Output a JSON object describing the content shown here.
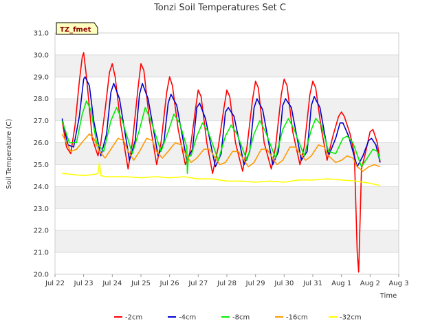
{
  "chart_data": {
    "type": "line",
    "title": "Tonzi Soil Temperatures Set C",
    "xlabel": "Time",
    "ylabel": "Soil Temperature (C)",
    "tag": "TZ_fmet",
    "ylim": [
      20.0,
      31.0
    ],
    "yticks": [
      "20.0",
      "21.0",
      "22.0",
      "23.0",
      "24.0",
      "25.0",
      "26.0",
      "27.0",
      "28.0",
      "29.0",
      "30.0",
      "31.0"
    ],
    "xlim": [
      0,
      12
    ],
    "xticks": [
      "Jul 22",
      "Jul 23",
      "Jul 24",
      "Jul 25",
      "Jul 26",
      "Jul 27",
      "Jul 28",
      "Jul 29",
      "Jul 30",
      "Jul 31",
      "Aug 1",
      "Aug 2",
      "Aug 3"
    ],
    "x_unit": "days since Jul 22",
    "grid": "horizontal",
    "background_bands": true,
    "legend_position": "bottom",
    "series": [
      {
        "name": "-2cm",
        "color": "#ff0000",
        "x": [
          0.25,
          0.4,
          0.55,
          0.7,
          0.85,
          0.95,
          1.0,
          1.1,
          1.3,
          1.5,
          1.6,
          1.75,
          1.9,
          2.0,
          2.1,
          2.3,
          2.55,
          2.7,
          2.9,
          3.0,
          3.1,
          3.3,
          3.55,
          3.7,
          3.9,
          4.0,
          4.1,
          4.3,
          4.55,
          4.7,
          4.9,
          5.0,
          5.1,
          5.3,
          5.5,
          5.7,
          5.9,
          6.0,
          6.1,
          6.3,
          6.55,
          6.7,
          6.9,
          7.0,
          7.1,
          7.3,
          7.55,
          7.7,
          7.9,
          8.0,
          8.1,
          8.3,
          8.55,
          8.7,
          8.9,
          9.0,
          9.1,
          9.3,
          9.5,
          9.7,
          9.9,
          10.0,
          10.1,
          10.3,
          10.45,
          10.55,
          10.6,
          10.7,
          10.85,
          11.0,
          11.1,
          11.25,
          11.35
        ],
        "y": [
          27.0,
          25.8,
          25.5,
          26.8,
          28.8,
          29.9,
          30.1,
          29.0,
          26.2,
          25.4,
          26.0,
          27.5,
          29.2,
          29.6,
          29.0,
          26.8,
          24.8,
          26.0,
          28.5,
          29.6,
          29.3,
          27.0,
          25.0,
          26.0,
          28.3,
          29.0,
          28.6,
          26.6,
          25.0,
          25.5,
          27.5,
          28.4,
          28.1,
          26.0,
          24.6,
          25.8,
          27.6,
          28.4,
          28.1,
          26.0,
          24.7,
          25.8,
          28.0,
          28.8,
          28.5,
          26.0,
          24.8,
          25.8,
          28.2,
          28.9,
          28.6,
          26.5,
          25.0,
          25.8,
          28.2,
          28.8,
          28.5,
          26.6,
          25.2,
          26.3,
          27.2,
          27.4,
          27.2,
          26.4,
          25.5,
          21.0,
          20.1,
          24.8,
          25.6,
          26.5,
          26.6,
          26.0,
          25.1
        ]
      },
      {
        "name": "-4cm",
        "color": "#0000cc",
        "x": [
          0.25,
          0.45,
          0.65,
          0.85,
          1.0,
          1.05,
          1.2,
          1.35,
          1.6,
          1.8,
          1.95,
          2.05,
          2.25,
          2.6,
          2.8,
          2.95,
          3.05,
          3.25,
          3.6,
          3.8,
          3.95,
          4.05,
          4.25,
          4.6,
          4.8,
          4.95,
          5.05,
          5.25,
          5.6,
          5.8,
          5.95,
          6.05,
          6.25,
          6.6,
          6.8,
          6.95,
          7.05,
          7.25,
          7.6,
          7.8,
          7.95,
          8.05,
          8.25,
          8.6,
          8.8,
          8.95,
          9.05,
          9.25,
          9.55,
          9.8,
          9.95,
          10.05,
          10.25,
          10.55,
          10.75,
          10.95,
          11.05,
          11.2,
          11.35
        ],
        "y": [
          27.1,
          25.9,
          25.8,
          27.2,
          28.9,
          29.0,
          28.6,
          27.0,
          25.4,
          26.4,
          28.3,
          28.7,
          28.0,
          25.2,
          26.1,
          28.2,
          28.7,
          28.0,
          25.4,
          26.0,
          27.8,
          28.2,
          27.7,
          25.2,
          25.7,
          27.6,
          27.8,
          27.1,
          24.9,
          25.5,
          27.4,
          27.6,
          27.2,
          25.0,
          25.6,
          27.6,
          28.0,
          27.5,
          25.0,
          25.6,
          27.7,
          28.0,
          27.6,
          25.2,
          25.6,
          27.7,
          28.1,
          27.6,
          25.4,
          26.2,
          26.9,
          26.9,
          26.3,
          24.9,
          25.4,
          26.1,
          26.2,
          25.9,
          25.1
        ]
      },
      {
        "name": "-8cm",
        "color": "#00ee00",
        "x": [
          0.25,
          0.5,
          0.75,
          0.95,
          1.1,
          1.25,
          1.45,
          1.7,
          1.95,
          2.15,
          2.35,
          2.7,
          2.95,
          3.15,
          3.35,
          3.7,
          3.95,
          4.15,
          4.35,
          4.6,
          4.62,
          4.66,
          4.75,
          4.95,
          5.15,
          5.35,
          5.7,
          5.95,
          6.15,
          6.35,
          6.7,
          6.95,
          7.15,
          7.35,
          7.7,
          7.95,
          8.15,
          8.35,
          8.7,
          8.95,
          9.1,
          9.3,
          9.55,
          9.8,
          10.05,
          10.2,
          10.4,
          10.7,
          10.95,
          11.1,
          11.25,
          11.35
        ],
        "y": [
          27.0,
          26.0,
          26.0,
          27.3,
          27.9,
          27.5,
          26.0,
          25.6,
          27.0,
          27.6,
          27.0,
          25.5,
          26.6,
          27.6,
          27.0,
          25.6,
          26.5,
          27.3,
          26.9,
          25.8,
          24.6,
          25.4,
          25.4,
          26.3,
          26.9,
          26.5,
          25.2,
          26.3,
          26.8,
          26.4,
          25.2,
          26.4,
          27.0,
          26.5,
          25.3,
          26.6,
          27.1,
          26.6,
          25.4,
          26.6,
          27.1,
          26.8,
          25.6,
          25.5,
          26.2,
          26.3,
          26.0,
          24.9,
          25.4,
          25.7,
          25.6,
          25.2
        ]
      },
      {
        "name": "-16cm",
        "color": "#ff9900",
        "x": [
          0.25,
          0.55,
          0.75,
          1.0,
          1.2,
          1.35,
          1.55,
          1.75,
          1.95,
          2.2,
          2.4,
          2.55,
          2.75,
          2.95,
          3.2,
          3.4,
          3.55,
          3.75,
          3.95,
          4.2,
          4.4,
          4.55,
          4.75,
          4.95,
          5.2,
          5.4,
          5.55,
          5.75,
          5.95,
          6.2,
          6.4,
          6.55,
          6.75,
          6.95,
          7.2,
          7.4,
          7.55,
          7.75,
          7.95,
          8.2,
          8.4,
          8.55,
          8.75,
          8.95,
          9.2,
          9.4,
          9.55,
          9.8,
          10.0,
          10.2,
          10.4,
          10.55,
          10.75,
          10.95,
          11.15,
          11.35
        ],
        "y": [
          26.4,
          25.6,
          25.7,
          26.1,
          26.4,
          26.2,
          25.6,
          25.3,
          25.7,
          26.2,
          26.1,
          25.6,
          25.2,
          25.6,
          26.2,
          26.1,
          25.6,
          25.3,
          25.6,
          26.0,
          25.9,
          25.5,
          25.1,
          25.3,
          25.7,
          25.7,
          25.4,
          25.0,
          25.1,
          25.6,
          25.6,
          25.3,
          24.9,
          25.1,
          25.7,
          25.7,
          25.4,
          25.0,
          25.2,
          25.8,
          25.8,
          25.5,
          25.2,
          25.4,
          25.9,
          25.8,
          25.4,
          25.1,
          25.2,
          25.4,
          25.3,
          24.9,
          24.7,
          24.9,
          25.0,
          24.9
        ]
      },
      {
        "name": "-32cm",
        "color": "#ffff00",
        "x": [
          0.25,
          0.6,
          1.0,
          1.35,
          1.5,
          1.55,
          1.6,
          1.75,
          2.0,
          2.5,
          3.0,
          3.5,
          4.0,
          4.5,
          5.0,
          5.5,
          6.0,
          6.5,
          7.0,
          7.5,
          8.0,
          8.5,
          9.0,
          9.5,
          10.0,
          10.5,
          11.0,
          11.35
        ],
        "y": [
          24.6,
          24.55,
          24.5,
          24.55,
          24.6,
          25.1,
          24.5,
          24.45,
          24.45,
          24.45,
          24.4,
          24.45,
          24.4,
          24.45,
          24.35,
          24.35,
          24.25,
          24.25,
          24.2,
          24.25,
          24.2,
          24.3,
          24.3,
          24.35,
          24.3,
          24.25,
          24.15,
          24.05
        ]
      }
    ]
  }
}
